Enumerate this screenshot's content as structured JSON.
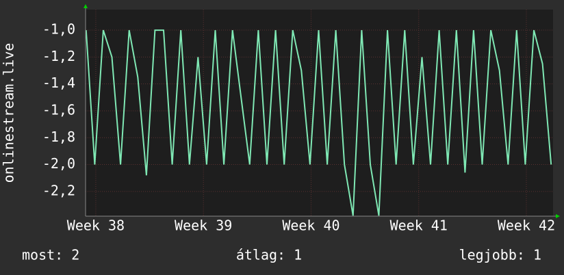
{
  "chart_data": {
    "type": "line",
    "ylabel": "onlinestream.live",
    "x": [
      37.91,
      37.99,
      38.07,
      38.15,
      38.23,
      38.31,
      38.39,
      38.47,
      38.55,
      38.63,
      38.71,
      38.79,
      38.87,
      38.95,
      39.03,
      39.11,
      39.19,
      39.27,
      39.35,
      39.43,
      39.51,
      39.59,
      39.67,
      39.75,
      39.83,
      39.91,
      39.99,
      40.07,
      40.15,
      40.23,
      40.31,
      40.39,
      40.47,
      40.55,
      40.63,
      40.71,
      40.79,
      40.87,
      40.95,
      41.03,
      41.11,
      41.19,
      41.27,
      41.35,
      41.43,
      41.51,
      41.59,
      41.67,
      41.75,
      41.83,
      41.91,
      41.99,
      42.07,
      42.15,
      42.23
    ],
    "values": [
      -1,
      -2,
      -1,
      -1.2,
      -2,
      -1,
      -1.35,
      -2.08,
      -1,
      -1,
      -2,
      -1,
      -2,
      -1.2,
      -2,
      -1,
      -2,
      -1,
      -1.5,
      -2,
      -1,
      -2,
      -1,
      -2,
      -1,
      -1.3,
      -2,
      -1,
      -2,
      -1,
      -2,
      -2.38,
      -1,
      -2,
      -2.38,
      -1,
      -2,
      -1,
      -2,
      -1.2,
      -2,
      -1,
      -2,
      -1,
      -2.06,
      -1,
      -2,
      -1,
      -1.3,
      -2,
      -1,
      -2,
      -1,
      -1.25,
      -2
    ],
    "color": "#7fe8b4",
    "xlim": [
      37.905,
      42.248
    ],
    "xticks": [
      {
        "value": 38,
        "label": "Week 38"
      },
      {
        "value": 39,
        "label": "Week 39"
      },
      {
        "value": 40,
        "label": "Week 40"
      },
      {
        "value": 41,
        "label": "Week 41"
      },
      {
        "value": 42,
        "label": "Week 42"
      }
    ],
    "ylim": [
      -2.384,
      -0.847
    ],
    "yticks": [
      {
        "value": -1,
        "label": "-1,0"
      },
      {
        "value": -1.2,
        "label": "-1,2"
      },
      {
        "value": -1.4,
        "label": "-1,4"
      },
      {
        "value": -1.6,
        "label": "-1,6"
      },
      {
        "value": -1.8,
        "label": "-1,8"
      },
      {
        "value": -2,
        "label": "-2,0"
      },
      {
        "value": -2.2,
        "label": "-2,2"
      }
    ],
    "grid": true,
    "stats": [
      "most: 2",
      "átlag: 1",
      "legjobb: 1"
    ]
  }
}
